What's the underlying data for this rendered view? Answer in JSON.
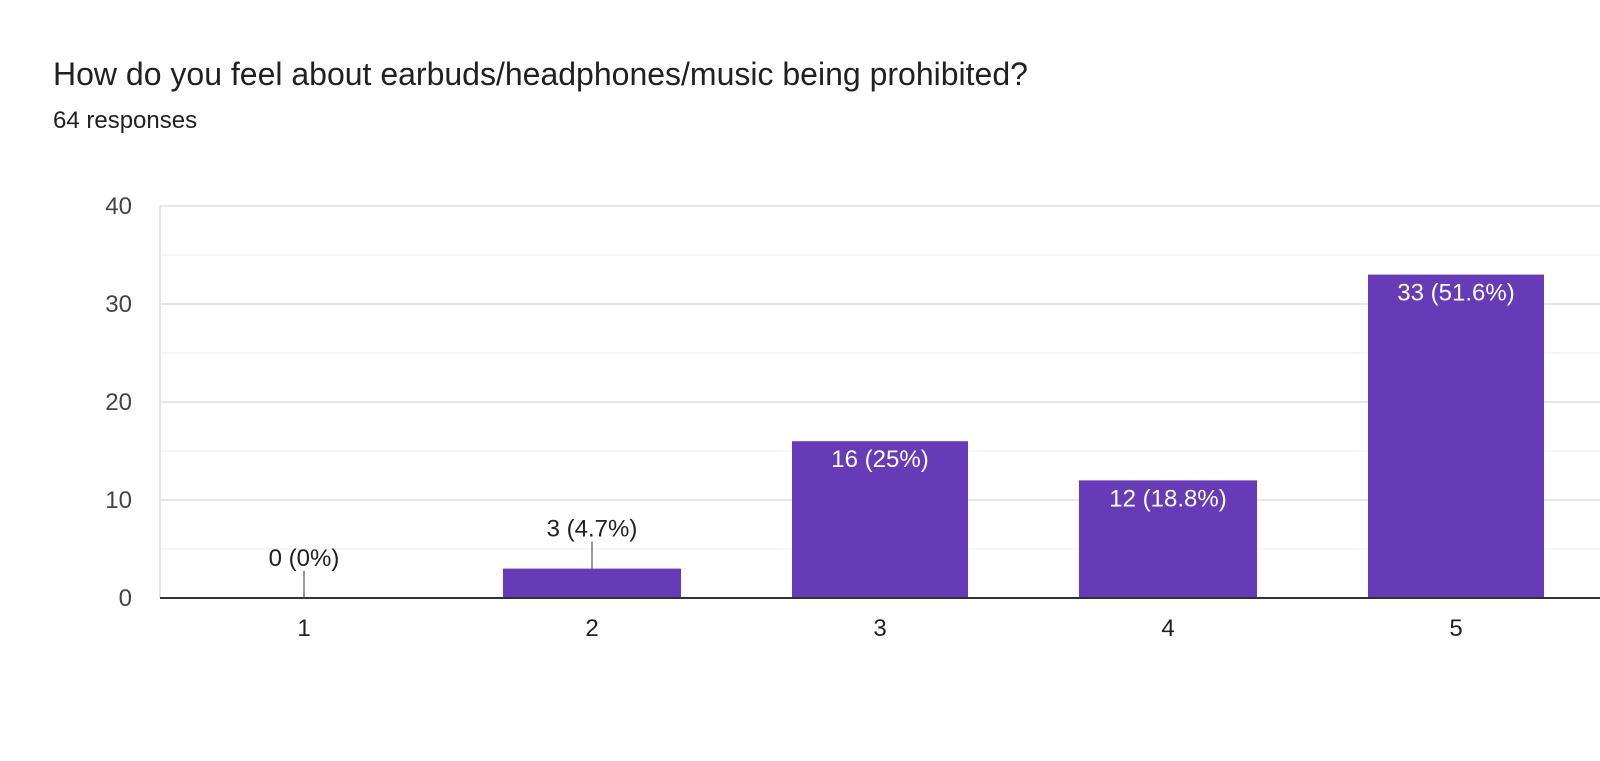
{
  "question": {
    "title": "How do you feel about earbuds/headphones/music being prohibited?",
    "subtitle": "64 responses"
  },
  "colors": {
    "bar": "#673ab7",
    "grid_major": "#e6e6e6",
    "grid_minor": "#f3f3f3",
    "axis": "#333333",
    "tick_text": "#444444",
    "label_outside": "#202124",
    "label_inside": "#ffffff",
    "leader_line": "#999999"
  },
  "chart_data": {
    "type": "bar",
    "title": "",
    "xlabel": "",
    "ylabel": "",
    "categories": [
      "1",
      "2",
      "3",
      "4",
      "5"
    ],
    "values": [
      0,
      3,
      16,
      12,
      33
    ],
    "data_labels": [
      "0 (0%)",
      "3 (4.7%)",
      "16 (25%)",
      "12 (18.8%)",
      "33 (51.6%)"
    ],
    "ylim": [
      0,
      40
    ],
    "yticks": [
      0,
      10,
      20,
      30,
      40
    ],
    "grid": true,
    "legend": "none"
  }
}
